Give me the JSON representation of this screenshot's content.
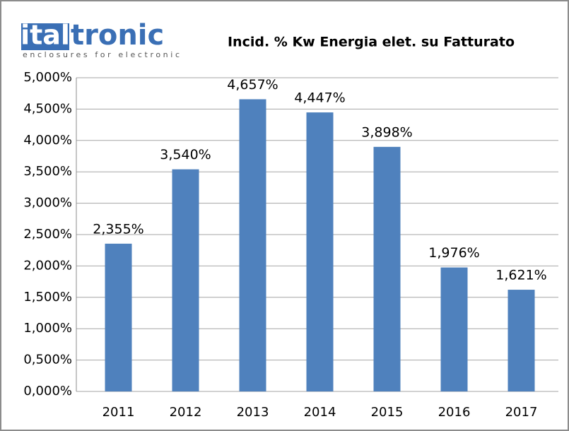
{
  "logo": {
    "highlight": "ital",
    "text": "tronic",
    "tagline": "enclosures for electronic"
  },
  "chart_data": {
    "type": "bar",
    "title": "Incid. % Kw Energia elet. su Fatturato",
    "categories": [
      "2011",
      "2012",
      "2013",
      "2014",
      "2015",
      "2016",
      "2017"
    ],
    "values": [
      2.355,
      3.54,
      4.657,
      4.447,
      3.898,
      1.976,
      1.621
    ],
    "value_labels": [
      "2,355%",
      "3,540%",
      "4,657%",
      "4,447%",
      "3,898%",
      "1,976%",
      "1,621%"
    ],
    "color": "#4f81bd",
    "ylim": [
      0,
      5
    ],
    "yticks": [
      {
        "value": 0,
        "label": "0,000%"
      },
      {
        "value": 0.5,
        "label": "0,500%"
      },
      {
        "value": 1,
        "label": "1,000%"
      },
      {
        "value": 1.5,
        "label": "1,500%"
      },
      {
        "value": 2,
        "label": "2,000%"
      },
      {
        "value": 2.5,
        "label": "2,500%"
      },
      {
        "value": 3,
        "label": "3,000%"
      },
      {
        "value": 3.5,
        "label": "3,500%"
      },
      {
        "value": 4,
        "label": "4,000%"
      },
      {
        "value": 4.5,
        "label": "4,500%"
      },
      {
        "value": 5,
        "label": "5,000%"
      }
    ],
    "grid": true
  }
}
